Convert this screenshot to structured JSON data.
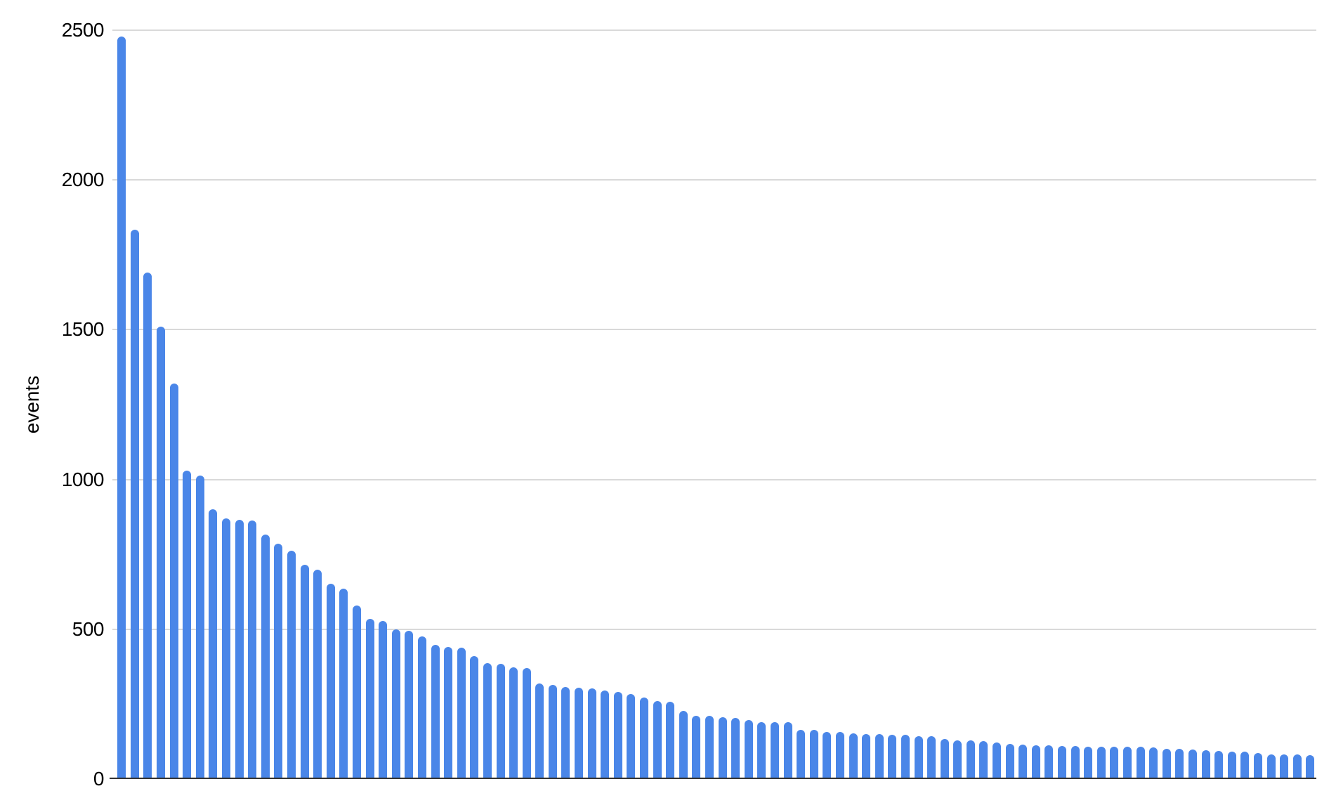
{
  "chart_data": {
    "type": "bar",
    "title": "",
    "xlabel": "",
    "ylabel": "events",
    "ylim": [
      0,
      2500
    ],
    "y_ticks": [
      0,
      500,
      1000,
      1500,
      2000,
      2500
    ],
    "x_tick_labels": "none",
    "legend": "none",
    "grid": true,
    "bar_color": "#4a86e8",
    "gridline_color": "#d9d9d9",
    "axis_color": "#333333",
    "values": [
      2480,
      1835,
      1690,
      1510,
      1320,
      1030,
      1012,
      900,
      871,
      866,
      864,
      817,
      785,
      763,
      716,
      700,
      652,
      636,
      580,
      535,
      528,
      500,
      495,
      476,
      448,
      442,
      438,
      410,
      386,
      384,
      374,
      370,
      320,
      315,
      308,
      306,
      302,
      295,
      290,
      284,
      272,
      260,
      258,
      228,
      212,
      211,
      206,
      205,
      197,
      191,
      190,
      189,
      165,
      164,
      158,
      157,
      152,
      151,
      149,
      148,
      147,
      143,
      142,
      133,
      130,
      128,
      126,
      122,
      118,
      115,
      113,
      112,
      110,
      110,
      109,
      109,
      108,
      108,
      107,
      106,
      101,
      100,
      98,
      97,
      93,
      92,
      91,
      86,
      82,
      81,
      81,
      80
    ]
  }
}
